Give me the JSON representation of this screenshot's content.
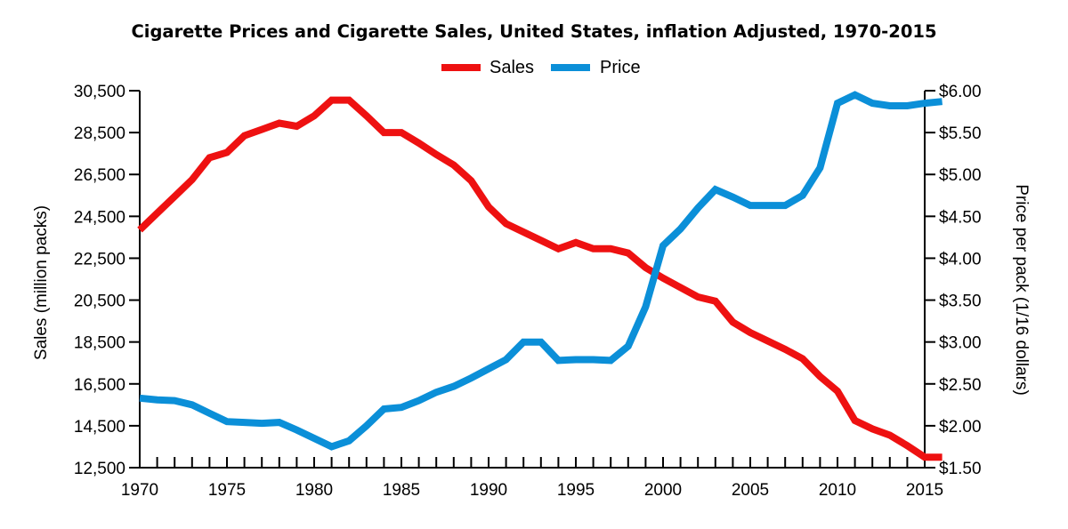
{
  "chart_data": {
    "type": "line",
    "title": "Cigarette Prices and Cigarette Sales, United States, inflation Adjusted, 1970-2015",
    "xlabel": "",
    "ylabel": "Sales (million packs)",
    "y2label": "Price per pack (1/16 dollars)",
    "xlim": [
      1970,
      2015
    ],
    "ylim": [
      12500,
      30500
    ],
    "y2lim": [
      1.5,
      6.0
    ],
    "x_ticks": [
      1970,
      1975,
      1980,
      1985,
      1990,
      1995,
      2000,
      2005,
      2010,
      2015
    ],
    "x_tick_labels": [
      "1970",
      "1975",
      "1980",
      "1985",
      "1990",
      "1995",
      "2000",
      "2005",
      "2010",
      "2015"
    ],
    "y_ticks": [
      12500,
      14500,
      16500,
      18500,
      20500,
      22500,
      24500,
      26500,
      28500,
      30500
    ],
    "y_tick_labels": [
      "12,500",
      "14,500",
      "16,500",
      "18,500",
      "20,500",
      "22,500",
      "24,500",
      "26,500",
      "28,500",
      "30,500"
    ],
    "y2_ticks": [
      1.5,
      2.0,
      2.5,
      3.0,
      3.5,
      4.0,
      4.5,
      5.0,
      5.5,
      6.0
    ],
    "y2_tick_labels": [
      "$1.50",
      "$2.00",
      "$2.50",
      "$3.00",
      "$3.50",
      "$4.00",
      "$4.50",
      "$5.00",
      "$5.50",
      "$6.00"
    ],
    "legend_position": "top-center",
    "grid": false,
    "series": [
      {
        "name": "Sales",
        "axis": "left",
        "color": "#ee1111",
        "points": [
          [
            1970,
            23850
          ],
          [
            1971,
            24650
          ],
          [
            1972,
            25450
          ],
          [
            1973,
            26250
          ],
          [
            1974,
            27300
          ],
          [
            1975,
            27550
          ],
          [
            1976,
            28350
          ],
          [
            1977,
            28650
          ],
          [
            1978,
            28950
          ],
          [
            1979,
            28800
          ],
          [
            1980,
            29300
          ],
          [
            1981,
            30050
          ],
          [
            1982,
            30050
          ],
          [
            1983,
            29300
          ],
          [
            1984,
            28500
          ],
          [
            1985,
            28500
          ],
          [
            1986,
            28000
          ],
          [
            1987,
            27450
          ],
          [
            1988,
            26950
          ],
          [
            1989,
            26200
          ],
          [
            1990,
            24950
          ],
          [
            1991,
            24150
          ],
          [
            1992,
            23750
          ],
          [
            1993,
            23350
          ],
          [
            1994,
            22950
          ],
          [
            1995,
            23250
          ],
          [
            1996,
            22950
          ],
          [
            1997,
            22950
          ],
          [
            1998,
            22750
          ],
          [
            1999,
            22050
          ],
          [
            2000,
            21550
          ],
          [
            2001,
            21100
          ],
          [
            2002,
            20650
          ],
          [
            2003,
            20450
          ],
          [
            2004,
            19450
          ],
          [
            2005,
            18950
          ],
          [
            2006,
            18550
          ],
          [
            2007,
            18150
          ],
          [
            2008,
            17700
          ],
          [
            2009,
            16850
          ],
          [
            2010,
            16150
          ],
          [
            2011,
            14750
          ],
          [
            2012,
            14350
          ],
          [
            2013,
            14050
          ],
          [
            2014,
            13550
          ],
          [
            2015,
            13000
          ],
          [
            2016,
            13000
          ]
        ]
      },
      {
        "name": "Price",
        "axis": "right",
        "color": "#0b8fd8",
        "points": [
          [
            1970,
            2.33
          ],
          [
            1971,
            2.31
          ],
          [
            1972,
            2.3
          ],
          [
            1973,
            2.25
          ],
          [
            1974,
            2.15
          ],
          [
            1975,
            2.05
          ],
          [
            1976,
            2.04
          ],
          [
            1977,
            2.03
          ],
          [
            1978,
            2.04
          ],
          [
            1979,
            1.95
          ],
          [
            1980,
            1.85
          ],
          [
            1981,
            1.75
          ],
          [
            1982,
            1.82
          ],
          [
            1983,
            2.0
          ],
          [
            1984,
            2.2
          ],
          [
            1985,
            2.22
          ],
          [
            1986,
            2.3
          ],
          [
            1987,
            2.4
          ],
          [
            1988,
            2.47
          ],
          [
            1989,
            2.57
          ],
          [
            1990,
            2.68
          ],
          [
            1991,
            2.79
          ],
          [
            1992,
            3.0
          ],
          [
            1993,
            3.0
          ],
          [
            1994,
            2.78
          ],
          [
            1995,
            2.79
          ],
          [
            1996,
            2.79
          ],
          [
            1997,
            2.78
          ],
          [
            1998,
            2.95
          ],
          [
            1999,
            3.42
          ],
          [
            2000,
            4.15
          ],
          [
            2001,
            4.35
          ],
          [
            2002,
            4.6
          ],
          [
            2003,
            4.82
          ],
          [
            2004,
            4.73
          ],
          [
            2005,
            4.63
          ],
          [
            2006,
            4.63
          ],
          [
            2007,
            4.63
          ],
          [
            2008,
            4.75
          ],
          [
            2009,
            5.08
          ],
          [
            2010,
            5.85
          ],
          [
            2011,
            5.95
          ],
          [
            2012,
            5.85
          ],
          [
            2013,
            5.82
          ],
          [
            2014,
            5.82
          ],
          [
            2015,
            5.85
          ],
          [
            2016,
            5.87
          ]
        ]
      }
    ]
  }
}
